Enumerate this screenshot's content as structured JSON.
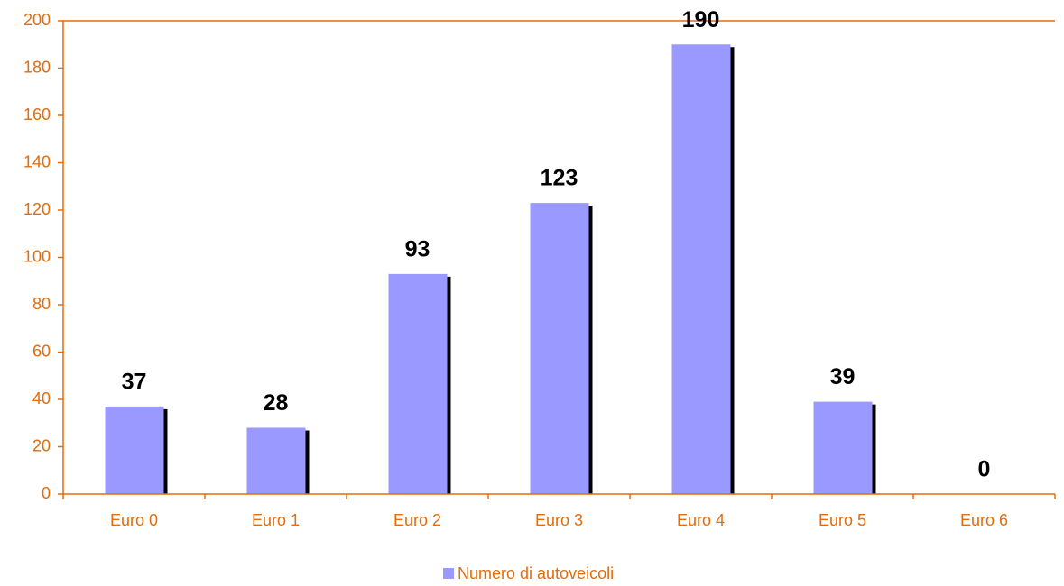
{
  "chart_data": {
    "type": "bar",
    "categories": [
      "Euro 0",
      "Euro 1",
      "Euro 2",
      "Euro 3",
      "Euro 4",
      "Euro 5",
      "Euro 6"
    ],
    "series": [
      {
        "name": "Numero di autoveicoli",
        "color": "#9999ff",
        "values": [
          37,
          28,
          93,
          123,
          190,
          39,
          0
        ]
      }
    ],
    "ylim": [
      0,
      200
    ],
    "yticks": [
      0,
      20,
      40,
      60,
      80,
      100,
      120,
      140,
      160,
      180,
      200
    ],
    "grid": false,
    "legend": "bottom",
    "axis_color": "#e46c0a"
  }
}
